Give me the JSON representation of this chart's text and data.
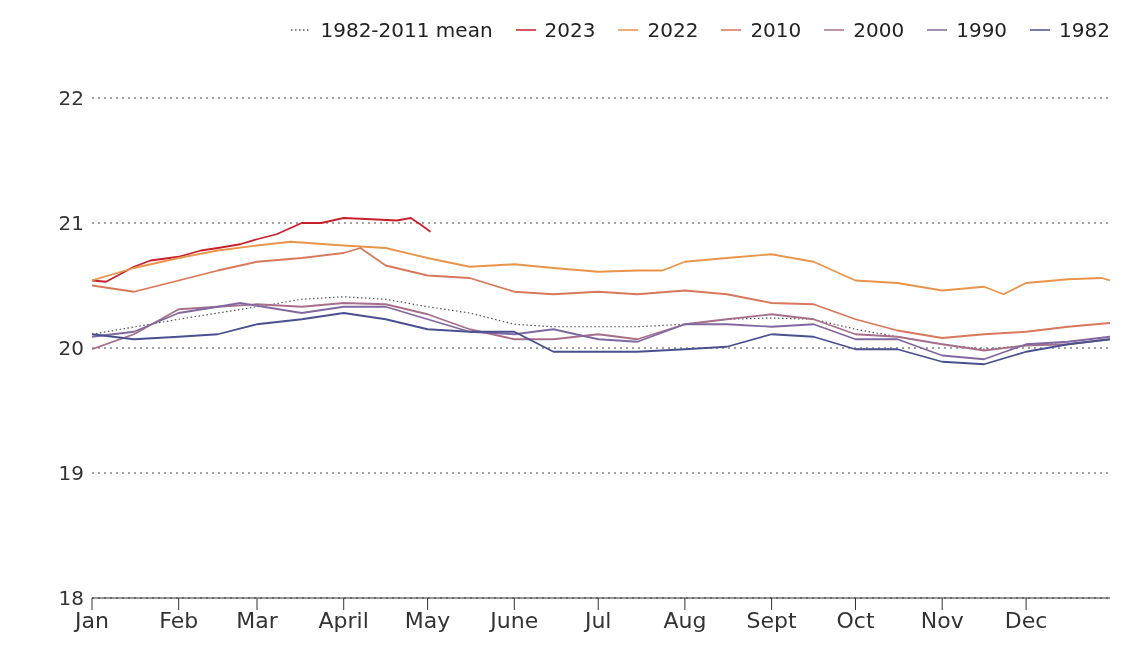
{
  "chart_data": {
    "type": "line",
    "xlim": [
      "--01-01",
      "--12-31"
    ],
    "ylim": [
      18,
      22
    ],
    "yticks": [
      18,
      19,
      20,
      21,
      22
    ],
    "xticks": [
      {
        "value": "--01-01",
        "label": "Jan"
      },
      {
        "value": "--02-01",
        "label": "Feb"
      },
      {
        "value": "--03-01",
        "label": "Mar"
      },
      {
        "value": "--04-01",
        "label": "April"
      },
      {
        "value": "--05-01",
        "label": "May"
      },
      {
        "value": "--06-01",
        "label": "June"
      },
      {
        "value": "--07-01",
        "label": "Jul"
      },
      {
        "value": "--08-01",
        "label": "Aug"
      },
      {
        "value": "--09-01",
        "label": "Sept"
      },
      {
        "value": "--10-01",
        "label": "Oct"
      },
      {
        "value": "--11-01",
        "label": "Nov"
      },
      {
        "value": "--12-01",
        "label": "Dec"
      }
    ],
    "grid": "y",
    "legend": "top",
    "line_style": "solid",
    "series": [
      {
        "name": "1982-2011 mean",
        "color": "#555555",
        "line_style": "dotted",
        "x": [
          "--01-01",
          "--02-01",
          "--03-01",
          "--03-17",
          "--04-01",
          "--04-16",
          "--05-01",
          "--05-16",
          "--06-01",
          "--06-15",
          "--07-01",
          "--07-15",
          "--08-01",
          "--08-16",
          "--09-01",
          "--09-16",
          "--10-01",
          "--10-16",
          "--11-01",
          "--11-16",
          "--12-01",
          "--12-16",
          "--12-31"
        ],
        "values": [
          20.11,
          20.23,
          20.33,
          20.39,
          20.41,
          20.39,
          20.33,
          20.28,
          20.19,
          20.17,
          20.17,
          20.17,
          20.19,
          20.23,
          20.24,
          20.23,
          20.15,
          20.09,
          20.03,
          19.99,
          20.02,
          20.05,
          20.09
        ]
      },
      {
        "name": "2023",
        "color": "#c8202a",
        "x": [
          "--01-01",
          "--01-06",
          "--01-16",
          "--01-22",
          "--02-01",
          "--02-09",
          "--02-15",
          "--02-23",
          "--03-01",
          "--03-08",
          "--03-17",
          "--03-24",
          "--04-01",
          "--04-11",
          "--04-20",
          "--04-25",
          "--04-29",
          "--05-02"
        ],
        "values": [
          20.54,
          20.53,
          20.65,
          20.7,
          20.73,
          20.78,
          20.8,
          20.83,
          20.87,
          20.91,
          21.0,
          21.0,
          21.04,
          21.03,
          21.02,
          21.04,
          20.98,
          20.93
        ]
      },
      {
        "name": "2022",
        "color": "#e8944a",
        "x": [
          "--01-01",
          "--01-16",
          "--02-01",
          "--02-15",
          "--03-01",
          "--03-13",
          "--04-01",
          "--04-16",
          "--05-01",
          "--05-16",
          "--06-01",
          "--06-15",
          "--07-01",
          "--07-15",
          "--07-24",
          "--08-01",
          "--08-16",
          "--09-01",
          "--09-16",
          "--10-01",
          "--10-16",
          "--11-01",
          "--11-16",
          "--11-23",
          "--12-01",
          "--12-16",
          "--12-28",
          "--12-31"
        ],
        "values": [
          20.54,
          20.64,
          20.72,
          20.78,
          20.82,
          20.85,
          20.82,
          20.8,
          20.72,
          20.65,
          20.67,
          20.64,
          20.61,
          20.62,
          20.62,
          20.69,
          20.72,
          20.75,
          20.69,
          20.54,
          20.52,
          20.46,
          20.49,
          20.43,
          20.52,
          20.55,
          20.56,
          20.54
        ]
      },
      {
        "name": "2010",
        "color": "#d9775a",
        "x": [
          "--01-01",
          "--01-16",
          "--02-01",
          "--02-15",
          "--03-01",
          "--03-17",
          "--04-01",
          "--04-07",
          "--04-16",
          "--05-01",
          "--05-16",
          "--06-01",
          "--06-15",
          "--07-01",
          "--07-15",
          "--08-01",
          "--08-16",
          "--09-01",
          "--09-16",
          "--10-01",
          "--10-16",
          "--11-01",
          "--11-16",
          "--12-01",
          "--12-16",
          "--12-31"
        ],
        "values": [
          20.5,
          20.45,
          20.54,
          20.62,
          20.69,
          20.72,
          20.76,
          20.8,
          20.66,
          20.58,
          20.56,
          20.45,
          20.43,
          20.45,
          20.43,
          20.46,
          20.43,
          20.36,
          20.35,
          20.23,
          20.14,
          20.08,
          20.11,
          20.13,
          20.17,
          20.2
        ]
      },
      {
        "name": "2000",
        "color": "#a86f8a",
        "x": [
          "--01-01",
          "--01-16",
          "--02-01",
          "--02-15",
          "--03-01",
          "--03-17",
          "--04-01",
          "--04-16",
          "--05-01",
          "--05-16",
          "--06-01",
          "--06-15",
          "--07-01",
          "--07-15",
          "--08-01",
          "--08-16",
          "--09-01",
          "--09-16",
          "--10-01",
          "--10-16",
          "--11-01",
          "--11-16",
          "--12-01",
          "--12-16",
          "--12-31"
        ],
        "values": [
          19.99,
          20.11,
          20.31,
          20.33,
          20.35,
          20.33,
          20.36,
          20.35,
          20.27,
          20.15,
          20.07,
          20.07,
          20.11,
          20.07,
          20.19,
          20.23,
          20.27,
          20.23,
          20.11,
          20.09,
          20.03,
          19.98,
          20.02,
          20.03,
          20.07
        ]
      },
      {
        "name": "1990",
        "color": "#8068a0",
        "x": [
          "--01-01",
          "--01-16",
          "--02-01",
          "--02-15",
          "--02-23",
          "--03-17",
          "--04-01",
          "--04-16",
          "--05-01",
          "--05-16",
          "--06-01",
          "--06-15",
          "--07-01",
          "--07-15",
          "--08-01",
          "--08-16",
          "--09-01",
          "--09-16",
          "--10-01",
          "--10-16",
          "--11-01",
          "--11-16",
          "--12-01",
          "--12-16",
          "--12-31"
        ],
        "values": [
          20.09,
          20.13,
          20.28,
          20.33,
          20.36,
          20.28,
          20.33,
          20.33,
          20.23,
          20.13,
          20.11,
          20.15,
          20.07,
          20.05,
          20.19,
          20.19,
          20.17,
          20.19,
          20.07,
          20.07,
          19.94,
          19.91,
          20.03,
          20.05,
          20.09
        ]
      },
      {
        "name": "1982",
        "color": "#4a4f90",
        "x": [
          "--01-01",
          "--01-16",
          "--02-01",
          "--02-15",
          "--03-01",
          "--03-17",
          "--04-01",
          "--04-16",
          "--05-01",
          "--05-16",
          "--06-01",
          "--06-15",
          "--07-01",
          "--07-15",
          "--08-01",
          "--08-16",
          "--09-01",
          "--09-16",
          "--10-01",
          "--10-16",
          "--11-01",
          "--11-16",
          "--12-01",
          "--12-16",
          "--12-31"
        ],
        "values": [
          20.11,
          20.07,
          20.09,
          20.11,
          20.19,
          20.23,
          20.28,
          20.23,
          20.15,
          20.13,
          20.13,
          19.97,
          19.97,
          19.97,
          19.99,
          20.01,
          20.11,
          20.09,
          19.99,
          19.99,
          19.89,
          19.87,
          19.97,
          20.03,
          20.07
        ]
      }
    ]
  }
}
